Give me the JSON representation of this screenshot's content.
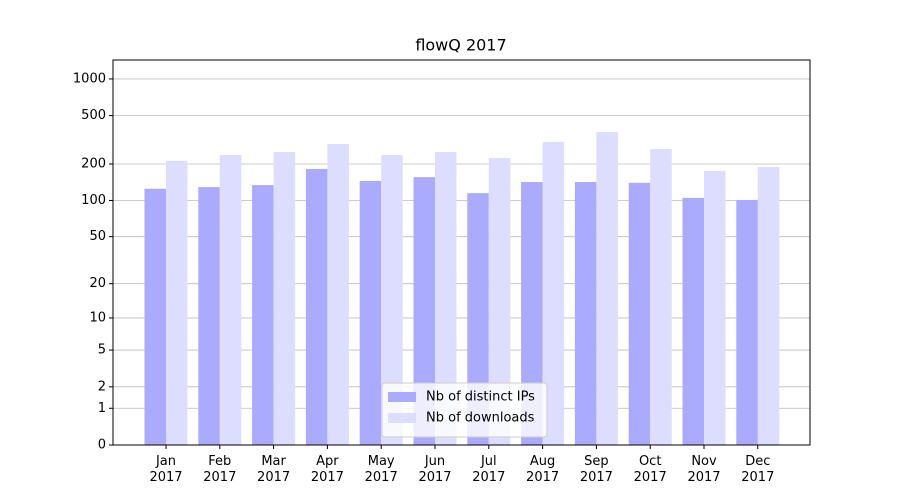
{
  "chart_data": {
    "type": "bar",
    "title": "flowQ 2017",
    "categories": [
      [
        "Jan",
        "2017"
      ],
      [
        "Feb",
        "2017"
      ],
      [
        "Mar",
        "2017"
      ],
      [
        "Apr",
        "2017"
      ],
      [
        "May",
        "2017"
      ],
      [
        "Jun",
        "2017"
      ],
      [
        "Jul",
        "2017"
      ],
      [
        "Aug",
        "2017"
      ],
      [
        "Sep",
        "2017"
      ],
      [
        "Oct",
        "2017"
      ],
      [
        "Nov",
        "2017"
      ],
      [
        "Dec",
        "2017"
      ]
    ],
    "series": [
      {
        "name": "Nb of distinct IPs",
        "color": "#aaaaff",
        "values": [
          125,
          129,
          134,
          182,
          145,
          156,
          115,
          142,
          142,
          140,
          105,
          101
        ]
      },
      {
        "name": "Nb of downloads",
        "color": "#ddddff",
        "values": [
          212,
          237,
          251,
          292,
          237,
          251,
          224,
          304,
          367,
          266,
          175,
          189
        ]
      }
    ],
    "yscale": "log1p",
    "ylim": [
      0,
      1430
    ],
    "yticks": [
      0,
      1,
      2,
      5,
      10,
      20,
      50,
      100,
      200,
      500,
      1000
    ],
    "grid": true,
    "legend": "lower center"
  }
}
